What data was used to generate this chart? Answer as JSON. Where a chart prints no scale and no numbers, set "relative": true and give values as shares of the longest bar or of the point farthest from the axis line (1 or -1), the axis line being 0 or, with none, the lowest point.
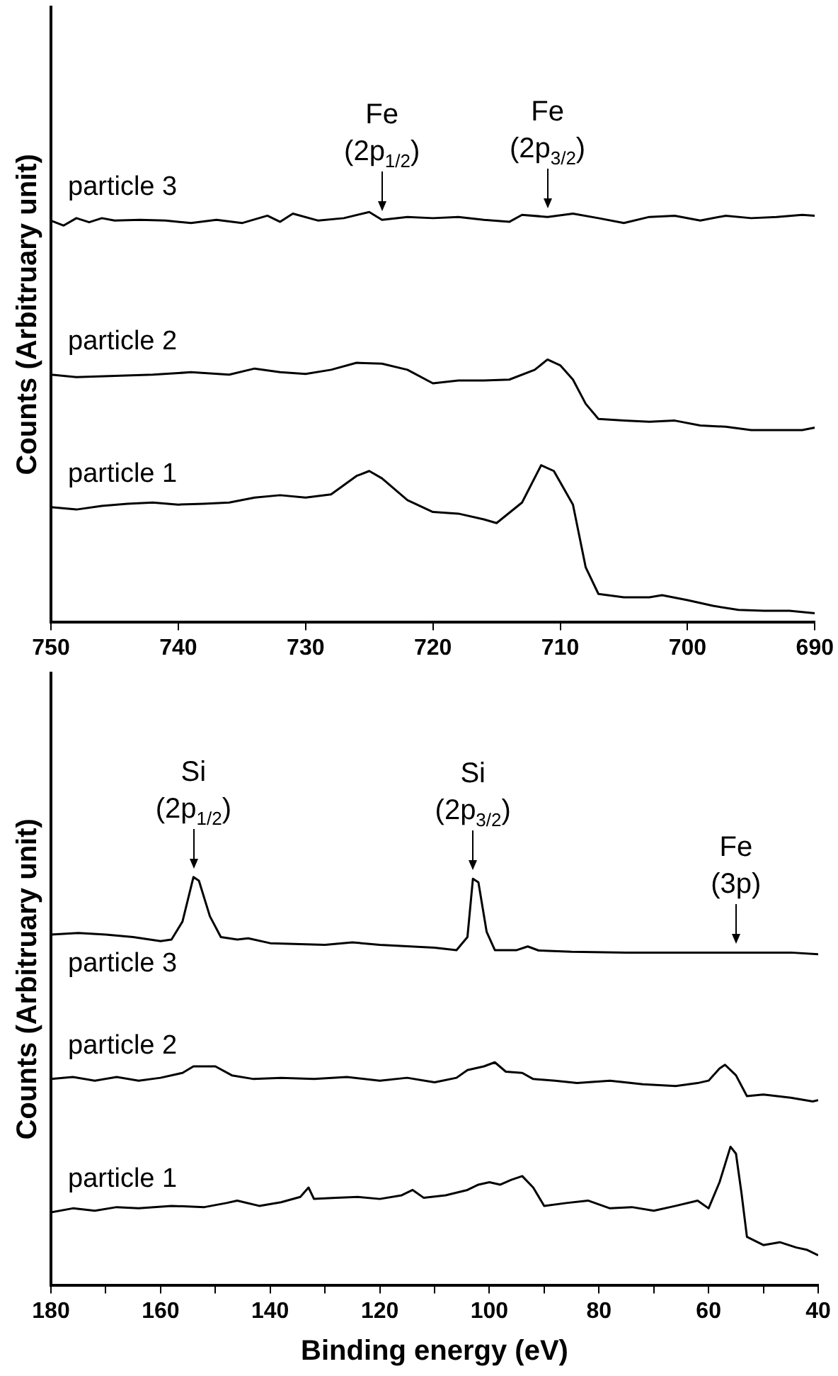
{
  "chart_data": [
    {
      "type": "line",
      "relative": true,
      "ylabel": "Counts (Arbitruary unit)",
      "xlim": [
        750,
        690
      ],
      "xticks": [
        750,
        740,
        730,
        720,
        710,
        700,
        690
      ],
      "grid": false,
      "legend": false,
      "marker": "none",
      "line_style": "solid",
      "annotations": [
        {
          "text": "Fe\n(2p$_{1/2}$)",
          "x": 724,
          "y": 0.981
        },
        {
          "text": "Fe\n(2p$_{3/2}$)",
          "x": 711,
          "y": 0.988
        }
      ],
      "series": [
        {
          "name": "particle 3",
          "color": "#000000",
          "x": [
            750,
            749,
            748,
            747,
            746,
            745,
            743,
            741,
            739,
            737,
            735,
            733,
            732,
            731,
            729,
            727,
            725,
            724,
            722,
            720,
            718,
            716,
            714,
            713,
            711,
            709,
            707,
            705,
            703,
            701,
            699,
            697,
            695,
            693,
            691,
            690
          ],
          "values": [
            0.979,
            0.967,
            0.985,
            0.975,
            0.985,
            0.979,
            0.981,
            0.979,
            0.973,
            0.981,
            0.973,
            0.991,
            0.976,
            0.996,
            0.979,
            0.985,
            1,
            0.981,
            0.988,
            0.985,
            0.988,
            0.981,
            0.976,
            0.993,
            0.988,
            0.996,
            0.985,
            0.973,
            0.988,
            0.991,
            0.979,
            0.991,
            0.985,
            0.988,
            0.993,
            0.991
          ]
        },
        {
          "name": "particle 2",
          "color": "#000000",
          "x": [
            750,
            748,
            745,
            742,
            739,
            736,
            734,
            732,
            730,
            728,
            726,
            724,
            722,
            720,
            718,
            716,
            714,
            712,
            711,
            710,
            709,
            708,
            707,
            705,
            703,
            701,
            699,
            697,
            695,
            693,
            691,
            690
          ],
          "values": [
            0.603,
            0.597,
            0.6,
            0.603,
            0.609,
            0.603,
            0.618,
            0.609,
            0.605,
            0.615,
            0.632,
            0.63,
            0.615,
            0.582,
            0.589,
            0.589,
            0.591,
            0.615,
            0.64,
            0.626,
            0.591,
            0.532,
            0.495,
            0.491,
            0.488,
            0.491,
            0.479,
            0.476,
            0.468,
            0.468,
            0.468,
            0.474
          ]
        },
        {
          "name": "particle 1",
          "color": "#000000",
          "x": [
            750,
            748,
            746,
            744,
            742,
            740,
            738,
            736,
            734,
            732,
            730,
            728,
            726,
            725,
            724,
            722,
            720,
            718,
            716,
            715,
            713,
            711.5,
            710.5,
            709,
            708,
            707,
            705,
            703,
            702,
            700,
            698,
            696,
            694,
            692,
            690
          ],
          "values": [
            0.28,
            0.274,
            0.283,
            0.288,
            0.291,
            0.286,
            0.288,
            0.291,
            0.303,
            0.309,
            0.303,
            0.311,
            0.356,
            0.368,
            0.35,
            0.297,
            0.268,
            0.264,
            0.25,
            0.241,
            0.291,
            0.382,
            0.368,
            0.286,
            0.133,
            0.068,
            0.06,
            0.06,
            0.065,
            0.053,
            0.039,
            0.029,
            0.027,
            0.027,
            0.021
          ]
        }
      ]
    },
    {
      "type": "line",
      "relative": true,
      "xlabel": "Binding energy (eV)",
      "ylabel": "Counts (Arbitruary unit)",
      "xlim": [
        180,
        40
      ],
      "xticks": [
        180,
        {
          "value": 170,
          "label": null
        },
        160,
        {
          "value": 150,
          "label": null
        },
        140,
        {
          "value": 130,
          "label": null
        },
        120,
        {
          "value": 110,
          "label": null
        },
        100,
        {
          "value": 90,
          "label": null
        },
        80,
        {
          "value": 70,
          "label": null
        },
        60,
        {
          "value": 50,
          "label": null
        },
        40
      ],
      "grid": false,
      "legend": false,
      "marker": "none",
      "line_style": "solid",
      "annotations": [
        {
          "text": "Si\n(2p$_{1/2}$)",
          "x": 154,
          "y": 1
        },
        {
          "text": "Si\n(2p$_{3/2}$)",
          "x": 103,
          "y": 0.996
        },
        {
          "text": "Fe\n(3p)",
          "x": 55,
          "y": 0.815
        }
      ],
      "series": [
        {
          "name": "particle 3",
          "color": "#000000",
          "x": [
            180,
            175,
            170,
            165,
            160,
            158,
            156,
            154,
            153,
            151,
            149,
            146,
            144,
            140,
            130,
            125,
            120,
            110,
            106,
            104,
            103,
            102,
            100.5,
            99,
            95,
            93,
            91,
            85,
            75,
            65,
            55,
            45,
            40
          ],
          "values": [
            0.859,
            0.863,
            0.859,
            0.853,
            0.843,
            0.847,
            0.891,
            1,
            0.991,
            0.904,
            0.853,
            0.847,
            0.85,
            0.838,
            0.834,
            0.84,
            0.834,
            0.827,
            0.821,
            0.853,
            0.996,
            0.987,
            0.866,
            0.821,
            0.821,
            0.83,
            0.82,
            0.817,
            0.815,
            0.815,
            0.815,
            0.815,
            0.811
          ]
        },
        {
          "name": "particle 2",
          "color": "#000000",
          "x": [
            180,
            176,
            172,
            168,
            164,
            160,
            156,
            154,
            150,
            147,
            143,
            138,
            132,
            126,
            120,
            115,
            110,
            106,
            104,
            101,
            99,
            97,
            94,
            92,
            88,
            84,
            78,
            72,
            66,
            62,
            60,
            58,
            57,
            55,
            53,
            50,
            45,
            41,
            40
          ],
          "values": [
            0.505,
            0.51,
            0.501,
            0.51,
            0.501,
            0.508,
            0.52,
            0.536,
            0.536,
            0.514,
            0.505,
            0.508,
            0.505,
            0.51,
            0.501,
            0.508,
            0.497,
            0.508,
            0.527,
            0.536,
            0.546,
            0.523,
            0.52,
            0.505,
            0.501,
            0.495,
            0.501,
            0.492,
            0.488,
            0.495,
            0.501,
            0.531,
            0.54,
            0.514,
            0.463,
            0.467,
            0.459,
            0.45,
            0.453
          ]
        },
        {
          "name": "particle 1",
          "color": "#000000",
          "x": [
            180,
            176,
            172,
            168,
            164,
            158,
            152,
            148,
            146,
            142,
            138,
            134.5,
            133,
            132,
            128,
            124,
            120,
            116,
            114,
            112,
            108,
            104,
            102,
            100,
            98,
            96,
            94,
            92,
            90,
            86,
            82,
            78,
            74,
            70,
            66,
            62,
            60,
            58,
            56,
            55,
            54,
            53,
            50,
            47,
            44,
            42,
            40
          ],
          "values": [
            0.178,
            0.188,
            0.182,
            0.191,
            0.188,
            0.194,
            0.191,
            0.201,
            0.207,
            0.194,
            0.203,
            0.216,
            0.239,
            0.211,
            0.214,
            0.216,
            0.211,
            0.22,
            0.233,
            0.214,
            0.22,
            0.233,
            0.246,
            0.252,
            0.246,
            0.258,
            0.267,
            0.239,
            0.194,
            0.201,
            0.207,
            0.188,
            0.191,
            0.182,
            0.194,
            0.207,
            0.188,
            0.252,
            0.339,
            0.322,
            0.226,
            0.118,
            0.098,
            0.105,
            0.092,
            0.086,
            0.073
          ]
        }
      ]
    }
  ]
}
